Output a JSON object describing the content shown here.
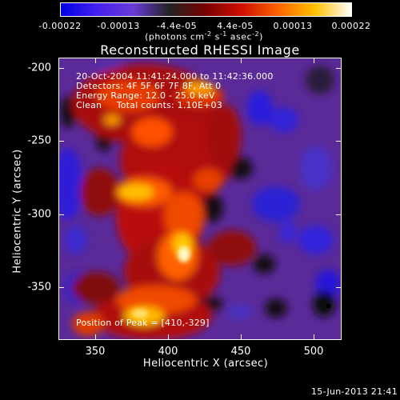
{
  "colorbar": {
    "ticks": [
      "-0.00022",
      "-0.00013",
      "-4.4e-05",
      "4.4e-05",
      "0.00013",
      "0.00022"
    ],
    "unit_main": "(photons cm",
    "unit_sup1": "-2",
    "unit_mid1": " s",
    "unit_sup2": "-1",
    "unit_mid2": " asec",
    "unit_sup3": "-2",
    "unit_end": ")",
    "colors": [
      "#0000e0",
      "#4422ee",
      "#6a3ad8",
      "#222222",
      "#7a0000",
      "#d01000",
      "#ff6600",
      "#ffc000",
      "#ffffff"
    ]
  },
  "title": "Reconstructed RHESSI Image",
  "annotations": {
    "time_range": "20-Oct-2004 11:41:24.000 to 11:42:36.000",
    "detectors": "Detectors: 4F 5F 6F 7F 8F, Att 0",
    "energy": "Energy Range: 12.0 - 25.0 keV",
    "clean": "Clean     Total counts: 1.10E+03",
    "peak": "Position of Peak = [410,-329]"
  },
  "axes": {
    "xlabel": "Heliocentric X (arcsec)",
    "ylabel": "Heliocentric Y (arcsec)",
    "xticks": [
      "350",
      "400",
      "450",
      "500"
    ],
    "yticks": [
      "-200",
      "-250",
      "-300",
      "-350"
    ],
    "x_range": [
      327,
      520
    ],
    "y_range": [
      -386,
      -193
    ]
  },
  "timestamp": "15-Jun-2013 21:41"
}
